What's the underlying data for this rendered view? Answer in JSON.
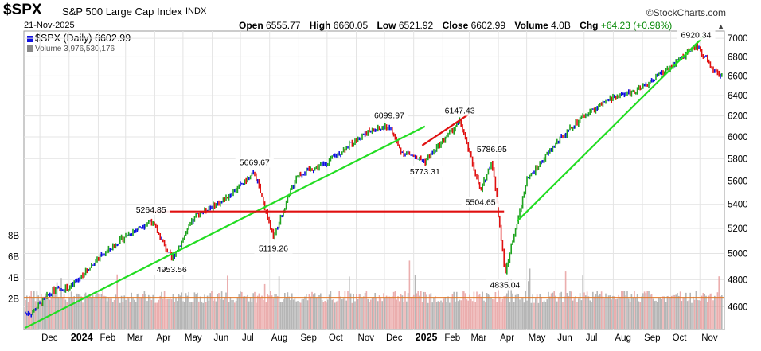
{
  "header": {
    "symbol": "$SPX",
    "name": "S&P 500 Large Cap Index",
    "exchange": "INDX",
    "brand": "©StockCharts.com",
    "date": "21-Nov-2025",
    "open_label": "Open",
    "open": "6555.77",
    "high_label": "High",
    "high": "6660.05",
    "low_label": "Low",
    "low": "6521.92",
    "close_label": "Close",
    "close": "6602.99",
    "volume_label": "Volume",
    "volume": "4.0B",
    "chg_label": "Chg",
    "chg": "+64.23 (+0.98%)",
    "collapse_icon": "triangle-up-icon"
  },
  "legend": {
    "price": "$SPX (Daily) 6602.99",
    "volume": "Volume 3,976,530,176"
  },
  "colors": {
    "up": "#1fa31f",
    "down": "#e01010",
    "neutral": "#1010e0",
    "trendline": "#22dd22",
    "level": "#e01010",
    "volume_ma": "#e07a2a",
    "vol_up": "#aaaaaa",
    "vol_down": "#e8a0a0"
  },
  "chart_data": {
    "type": "line",
    "title": "$SPX S&P 500 Large Cap Index",
    "x_ticks": [
      "Dec",
      "2024",
      "Feb",
      "Mar",
      "Apr",
      "May",
      "Jun",
      "Jul",
      "Aug",
      "Sep",
      "Oct",
      "Nov",
      "Dec",
      "2025",
      "Feb",
      "Mar",
      "Apr",
      "May",
      "Jun",
      "Jul",
      "Aug",
      "Sep",
      "Oct",
      "Nov"
    ],
    "y_ticks": [
      "7000",
      "6800",
      "6600",
      "6400",
      "6200",
      "6000",
      "5800",
      "5600",
      "5400",
      "5200",
      "5000",
      "4800",
      "4600"
    ],
    "volume_ticks": [
      "8B",
      "6B",
      "4B",
      "2B"
    ],
    "y_scale": "log",
    "ylim": [
      4440,
      7080
    ],
    "price_series": {
      "name": "$SPX (Daily)",
      "x": [
        "2023-11-22",
        "2023-12-15",
        "2024-01-02",
        "2024-02-01",
        "2024-03-01",
        "2024-03-28",
        "2024-04-19",
        "2024-05-15",
        "2024-06-14",
        "2024-07-16",
        "2024-08-05",
        "2024-08-30",
        "2024-09-30",
        "2024-11-11",
        "2024-12-06",
        "2024-12-18",
        "2025-01-13",
        "2025-02-19",
        "2025-03-13",
        "2025-03-25",
        "2025-04-08",
        "2025-05-01",
        "2025-06-03",
        "2025-07-01",
        "2025-07-31",
        "2025-08-29",
        "2025-09-30",
        "2025-10-28",
        "2025-11-21"
      ],
      "y": [
        4555,
        4720,
        4740,
        4960,
        5140,
        5264.85,
        4953.56,
        5310,
        5440,
        5669.67,
        5119.26,
        5650,
        5760,
        6040,
        6099.97,
        5870,
        5773.31,
        6147.43,
        5504.65,
        5786.95,
        4835.04,
        5600,
        5960,
        6200,
        6380,
        6460,
        6690,
        6920.34,
        6602.99
      ]
    },
    "annotations": [
      {
        "text": "5264.85",
        "x": "2024-03-28",
        "y": 5264.85
      },
      {
        "text": "4953.56",
        "x": "2024-04-19",
        "y": 4953.56
      },
      {
        "text": "5669.67",
        "x": "2024-07-16",
        "y": 5669.67
      },
      {
        "text": "5119.26",
        "x": "2024-08-05",
        "y": 5119.26
      },
      {
        "text": "6099.97",
        "x": "2024-12-06",
        "y": 6099.97
      },
      {
        "text": "5773.31",
        "x": "2025-01-13",
        "y": 5773.31
      },
      {
        "text": "6147.43",
        "x": "2025-02-19",
        "y": 6147.43
      },
      {
        "text": "5786.95",
        "x": "2025-03-25",
        "y": 5786.95
      },
      {
        "text": "5504.65",
        "x": "2025-03-13",
        "y": 5504.65
      },
      {
        "text": "4835.04",
        "x": "2025-04-08",
        "y": 4835.04
      },
      {
        "text": "6920.34",
        "x": "2025-10-28",
        "y": 6920.34
      }
    ],
    "trendlines": [
      {
        "kind": "support",
        "from": {
          "x": "2023-11-15",
          "y": 4450
        },
        "to": {
          "x": "2025-01-13",
          "y": 6100
        }
      },
      {
        "kind": "support",
        "from": {
          "x": "2025-04-21",
          "y": 5260
        },
        "to": {
          "x": "2025-11-05",
          "y": 7020
        }
      },
      {
        "kind": "horizontal",
        "from": {
          "x": "2024-03-28",
          "y": 5340
        },
        "to": {
          "x": "2025-04-07",
          "y": 5340
        }
      },
      {
        "kind": "resistance",
        "from": {
          "x": "2025-01-10",
          "y": 5920
        },
        "to": {
          "x": "2025-03-01",
          "y": 6220
        }
      }
    ],
    "volume_ma": {
      "value_billions": 2.1
    },
    "grid": true,
    "legend_position": "top-left"
  }
}
